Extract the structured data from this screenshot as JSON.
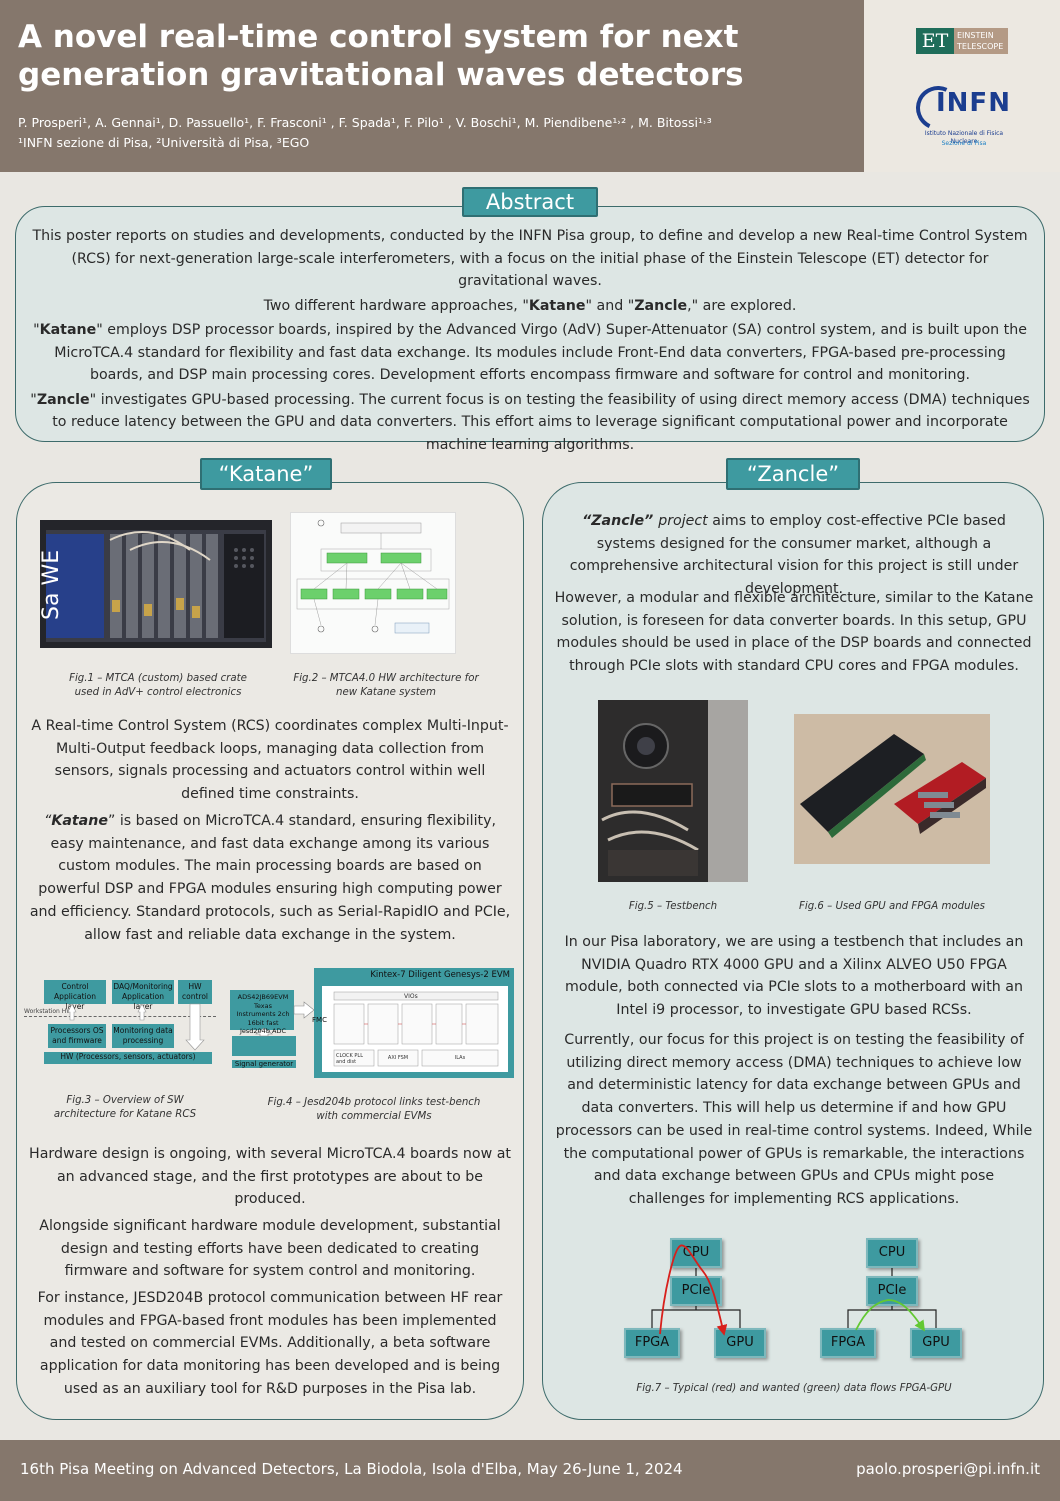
{
  "header": {
    "title": "A novel real-time control system for next generation gravitational waves detectors",
    "authors_line": "P. Prosperi¹, A. Gennai¹, D. Passuello¹, F. Frasconi¹ , F. Spada¹, F. Pilo¹ , V. Boschi¹, M. Piendibene¹˒² , M. Bitossi¹˒³",
    "affiliations_line": "¹INFN sezione di Pisa, ²Università di Pisa, ³EGO",
    "et_logo": {
      "mark": "ET",
      "text1": "EINSTEIN",
      "text2": "TELESCOPE"
    },
    "infn_logo": {
      "mark": "INFN",
      "sub1": "Istituto Nazionale di Fisica Nucleare",
      "sub2": "Sezione di Pisa",
      "badge": "PISA"
    }
  },
  "abstract": {
    "tab": "Abstract",
    "p1": "This poster reports on studies and developments, conducted by the INFN Pisa group, to define and develop a new Real-time Control System (RCS) for next-generation large-scale interferometers, with a focus on the initial phase of the Einstein Telescope (ET) detector for gravitational waves.",
    "p1b_pre": "Two different hardware approaches, \"",
    "p1b_k": "Katane",
    "p1b_mid": "\" and \"",
    "p1b_z": "Zancle",
    "p1b_post": ",\" are explored.",
    "p2_q1": "\"",
    "p2_k": "Katane",
    "p2_rest": "\" employs DSP processor boards, inspired by the Advanced Virgo (AdV) Super-Attenuator (SA) control system, and is built upon the MicroTCA.4 standard for flexibility and fast data exchange. Its modules include Front-End data converters, FPGA-based pre-processing boards, and DSP main processing cores. Development efforts encompass firmware and software for control and monitoring.",
    "p3_q1": "\"",
    "p3_z": "Zancle",
    "p3_rest": "\" investigates GPU-based processing. The current focus is on testing the feasibility of using direct memory access (DMA) techniques to reduce latency between the GPU and data converters. This effort aims to leverage significant computational power and incorporate machine learning algorithms."
  },
  "katane": {
    "tab": "“Katane”",
    "fig1_caption": "Fig.1 – MTCA (custom) based crate used in AdV+ control electronics",
    "fig2_caption": "Fig.2 – MTCA4.0 HW architecture for new Katane system",
    "p1": "A Real-time Control System (RCS) coordinates complex Multi-Input-Multi-Output feedback loops, managing data collection from sensors, signals processing and actuators control within well defined time constraints.",
    "p2_q1": "“",
    "p2_k": "Katane",
    "p2_rest": "” is based on MicroTCA.4 standard, ensuring flexibility, easy maintenance, and fast data exchange among its various custom modules. The main processing boards are based on powerful DSP and FPGA modules ensuring high computing power and efficiency. Standard protocols, such as Serial-RapidIO and PCIe, allow fast and reliable data exchange in the system.",
    "fig3_caption": "Fig.3 – Overview of SW architecture for Katane RCS",
    "fig4_caption": "Fig.4 – Jesd204b protocol links test-bench with commercial EVMs",
    "p3": "Hardware design is ongoing, with several MicroTCA.4 boards now at an advanced stage, and the first prototypes are about to be produced.",
    "p4": "Alongside significant hardware module development, substantial design and testing efforts have been dedicated to creating firmware and software for system control and monitoring.",
    "p5": "For instance, JESD204B protocol communication between HF rear modules and FPGA-based front modules has been implemented and tested on commercial EVMs. Additionally, a beta software application for data monitoring has been developed and is being used as an auxiliary tool for R&D purposes in the Pisa lab.",
    "fig3": {
      "control": "Control Application layer",
      "daq": "DAQ/Monitoring Application layer",
      "hwctl": "HW control",
      "ws": "Workstation HW",
      "procos": "Processors OS and firmware",
      "mondata": "Monitoring data processing",
      "hw": "HW (Processors, sensors, actuators)"
    },
    "fig4": {
      "adc": "ADS42JB69EVM Texas Instruments 2ch 16bit fast Jesd204b ADC",
      "siggen": "Signal generator",
      "fmc": "FMC",
      "kintex": "Kintex-7 Diligent Genesys-2 EVM",
      "vios": "VIOs",
      "clock": "CLOCK PLL and dist",
      "axi": "AXI FSM",
      "ilas": "ILAs"
    },
    "fig1_text": "Sa WE"
  },
  "zancle": {
    "tab": "“Zancle”",
    "p1_z": "“Zancle” ",
    "p1_proj": "project",
    "p1_rest": " aims to employ cost-effective PCIe based systems designed for the consumer market, although a comprehensive architectural vision for this project is still under development.",
    "p2": "However, a modular and flexible architecture, similar to the Katane solution, is foreseen for data converter boards. In this setup, GPU modules should be used in place of the DSP boards and connected through PCIe slots with standard CPU cores and FPGA modules.",
    "fig5_caption": "Fig.5 – Testbench",
    "fig6_caption": "Fig.6 – Used GPU and FPGA modules",
    "p3": "In our Pisa laboratory, we are using a testbench that includes an NVIDIA Quadro RTX 4000 GPU and a Xilinx ALVEO U50 FPGA module, both connected via PCIe slots to a motherboard with an Intel i9 processor, to investigate GPU based RCSs.",
    "p4": "Currently, our focus for this project is on testing the feasibility of utilizing direct memory access (DMA) techniques to achieve low and deterministic latency for data exchange between GPUs and data converters. This will help us determine if and how GPU processors can be used in real-time control systems. Indeed, While the computational power of GPUs is remarkable, the interactions and data exchange between GPUs and CPUs might pose challenges for implementing RCS applications.",
    "fig7_caption": "Fig.7 – Typical (red) and wanted (green) data flows FPGA-GPU",
    "fig7": {
      "cpu": "CPU",
      "pcie": "PCIe",
      "fpga": "FPGA",
      "gpu": "GPU"
    }
  },
  "footer": {
    "left": "16th Pisa Meeting on Advanced Detectors, La Biodola, Isola d'Elba, May 26-June 1, 2024",
    "right": "paolo.prosperi@pi.infn.it"
  },
  "colors": {
    "header": "#85776c",
    "tab": "#3e9aa0",
    "panel": "#dde6e4",
    "border": "#3d6b6b",
    "red_flow": "#d8201c",
    "green_flow": "#62c832"
  }
}
